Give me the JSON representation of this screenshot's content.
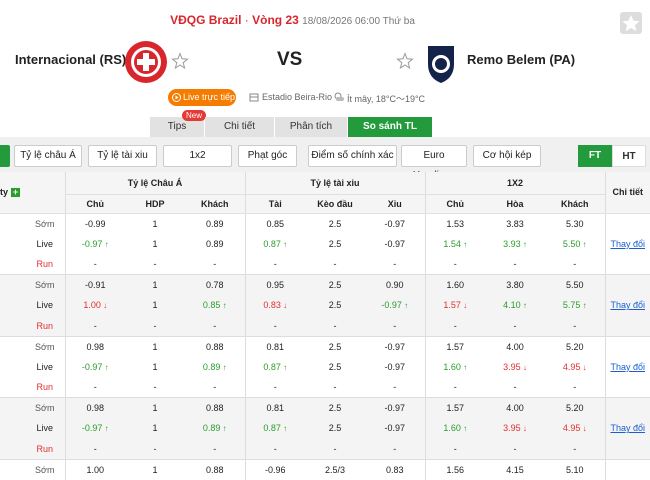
{
  "header": {
    "league": "VĐQG Brazil",
    "round": "Vòng 23",
    "datetime": "18/08/2026 06:00 Thứ ba"
  },
  "match": {
    "home": "Internacional (RS)",
    "vs": "VS",
    "away": "Remo Belem (PA)",
    "live": "Live trực tiếp",
    "venue": "Estadio Beira-Rio",
    "weather": "Ít mây, 18°C～19°C"
  },
  "tabs": [
    {
      "label": "Tips",
      "badge": "New"
    },
    {
      "label": "Chi tiết"
    },
    {
      "label": "Phân tích"
    },
    {
      "label": "So sánh TL",
      "active": true
    }
  ],
  "filters": [
    "Tỷ lệ châu Á",
    "Tỷ lệ tài xiu",
    "1x2",
    "Phạt góc",
    "Điểm số chính xác",
    "Euro Handicap",
    "Cơ hội kép"
  ],
  "periods": [
    {
      "label": "FT",
      "active": true
    },
    {
      "label": "HT"
    }
  ],
  "table": {
    "stub": "ty",
    "groups": [
      "Tỷ lệ Châu Á",
      "Tỷ lệ tài xiu",
      "1X2"
    ],
    "columns": [
      "Chủ",
      "HDP",
      "Khách",
      "Tài",
      "Kèo đầu",
      "Xỉu",
      "Chủ",
      "Hòa",
      "Khách"
    ],
    "detail": "Chi tiết",
    "blocks": [
      {
        "rows": [
          {
            "label": "Sớm",
            "cells": [
              "-0.99",
              "1",
              "0.89",
              "0.85",
              "2.5",
              "-0.97",
              "1.53",
              "3.83",
              "5.30"
            ]
          },
          {
            "label": "Live",
            "cells": [
              {
                "v": "-0.97",
                "d": "up"
              },
              "1",
              "0.89",
              {
                "v": "0.87",
                "d": "up"
              },
              "2.5",
              "-0.97",
              {
                "v": "1.54",
                "d": "up"
              },
              {
                "v": "3.93",
                "d": "up"
              },
              {
                "v": "5.50",
                "d": "up"
              }
            ],
            "link": "Thay đổi"
          },
          {
            "label": "Run",
            "cells": [
              "-",
              "-",
              "-",
              "-",
              "-",
              "-",
              "-",
              "-",
              "-"
            ]
          }
        ]
      },
      {
        "rows": [
          {
            "label": "Sớm",
            "cells": [
              "-0.91",
              "1",
              "0.78",
              "0.95",
              "2.5",
              "0.90",
              "1.60",
              "3.80",
              "5.50"
            ]
          },
          {
            "label": "Live",
            "cells": [
              {
                "v": "1.00",
                "d": "down"
              },
              "1",
              {
                "v": "0.85",
                "d": "up"
              },
              {
                "v": "0.83",
                "d": "down"
              },
              "2.5",
              {
                "v": "-0.97",
                "d": "up"
              },
              {
                "v": "1.57",
                "d": "down"
              },
              {
                "v": "4.10",
                "d": "up"
              },
              {
                "v": "5.75",
                "d": "up"
              }
            ],
            "link": "Thay đổi"
          },
          {
            "label": "Run",
            "cells": [
              "-",
              "-",
              "-",
              "-",
              "-",
              "-",
              "-",
              "-",
              "-"
            ]
          }
        ]
      },
      {
        "rows": [
          {
            "label": "Sớm",
            "cells": [
              "0.98",
              "1",
              "0.88",
              "0.81",
              "2.5",
              "-0.97",
              "1.57",
              "4.00",
              "5.20"
            ]
          },
          {
            "label": "Live",
            "cells": [
              {
                "v": "-0.97",
                "d": "up"
              },
              "1",
              {
                "v": "0.89",
                "d": "up"
              },
              {
                "v": "0.87",
                "d": "up"
              },
              "2.5",
              "-0.97",
              {
                "v": "1.60",
                "d": "up"
              },
              {
                "v": "3.95",
                "d": "down"
              },
              {
                "v": "4.95",
                "d": "down"
              }
            ],
            "link": "Thay đổi"
          },
          {
            "label": "Run",
            "cells": [
              "-",
              "-",
              "-",
              "-",
              "-",
              "-",
              "-",
              "-",
              "-"
            ]
          }
        ]
      },
      {
        "rows": [
          {
            "label": "Sớm",
            "cells": [
              "0.98",
              "1",
              "0.88",
              "0.81",
              "2.5",
              "-0.97",
              "1.57",
              "4.00",
              "5.20"
            ]
          },
          {
            "label": "Live",
            "cells": [
              {
                "v": "-0.97",
                "d": "up"
              },
              "1",
              {
                "v": "0.89",
                "d": "up"
              },
              {
                "v": "0.87",
                "d": "up"
              },
              "2.5",
              "-0.97",
              {
                "v": "1.60",
                "d": "up"
              },
              {
                "v": "3.95",
                "d": "down"
              },
              {
                "v": "4.95",
                "d": "down"
              }
            ],
            "link": "Thay đổi"
          },
          {
            "label": "Run",
            "cells": [
              "-",
              "-",
              "-",
              "-",
              "-",
              "-",
              "-",
              "-",
              "-"
            ]
          }
        ]
      },
      {
        "rows": [
          {
            "label": "Sớm",
            "cells": [
              "1.00",
              "1",
              "0.88",
              "-0.96",
              "2.5/3",
              "0.83",
              "1.56",
              "4.15",
              "5.10"
            ]
          }
        ]
      }
    ]
  }
}
